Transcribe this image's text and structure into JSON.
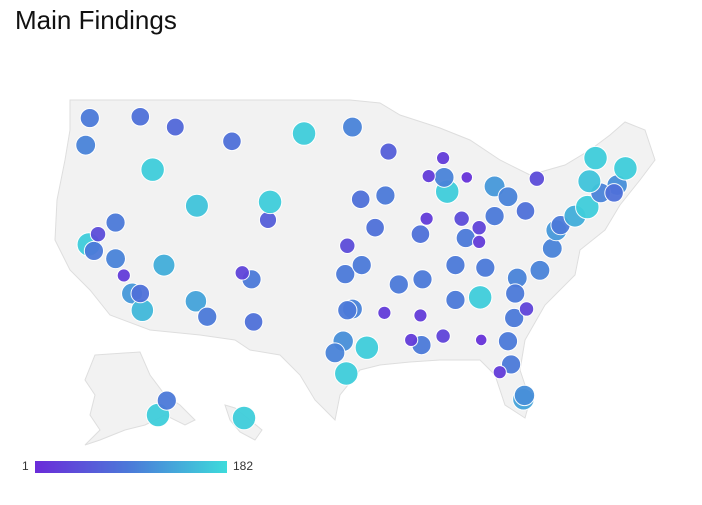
{
  "chart_data": {
    "type": "bubble-map",
    "title": "Main Findings",
    "scale": {
      "min": 1,
      "max": 182,
      "colors": [
        "#6a2bd9",
        "#4b7bd9",
        "#3ddbdb"
      ]
    },
    "points": [
      {
        "lon": -122.3,
        "lat": 47.6,
        "value": 90
      },
      {
        "lon": -122.7,
        "lat": 45.5,
        "value": 100
      },
      {
        "lon": -117.4,
        "lat": 47.7,
        "value": 80
      },
      {
        "lon": -116.2,
        "lat": 43.6,
        "value": 170
      },
      {
        "lon": -114.0,
        "lat": 46.9,
        "value": 70
      },
      {
        "lon": -108.5,
        "lat": 45.8,
        "value": 80
      },
      {
        "lon": -101.5,
        "lat": 46.4,
        "value": 170
      },
      {
        "lon": -96.8,
        "lat": 46.9,
        "value": 100
      },
      {
        "lon": -93.3,
        "lat": 45.0,
        "value": 60
      },
      {
        "lon": -111.9,
        "lat": 40.8,
        "value": 160
      },
      {
        "lon": -105.0,
        "lat": 39.7,
        "value": 60
      },
      {
        "lon": -104.8,
        "lat": 41.1,
        "value": 170
      },
      {
        "lon": -122.4,
        "lat": 37.8,
        "value": 170
      },
      {
        "lon": -121.9,
        "lat": 37.3,
        "value": 90
      },
      {
        "lon": -121.5,
        "lat": 38.6,
        "value": 40
      },
      {
        "lon": -118.2,
        "lat": 34.0,
        "value": 120
      },
      {
        "lon": -117.2,
        "lat": 32.7,
        "value": 150
      },
      {
        "lon": -117.4,
        "lat": 34.0,
        "value": 80
      },
      {
        "lon": -115.1,
        "lat": 36.2,
        "value": 140
      },
      {
        "lon": -112.0,
        "lat": 33.4,
        "value": 130
      },
      {
        "lon": -110.9,
        "lat": 32.2,
        "value": 90
      },
      {
        "lon": -106.6,
        "lat": 35.1,
        "value": 90
      },
      {
        "lon": -107.5,
        "lat": 35.6,
        "value": 30
      },
      {
        "lon": -106.4,
        "lat": 31.8,
        "value": 80
      },
      {
        "lon": -96.8,
        "lat": 32.8,
        "value": 100
      },
      {
        "lon": -97.3,
        "lat": 32.7,
        "value": 90
      },
      {
        "lon": -97.7,
        "lat": 30.3,
        "value": 110
      },
      {
        "lon": -98.5,
        "lat": 29.4,
        "value": 100
      },
      {
        "lon": -95.4,
        "lat": 29.8,
        "value": 170
      },
      {
        "lon": -97.4,
        "lat": 27.8,
        "value": 170
      },
      {
        "lon": -97.5,
        "lat": 35.5,
        "value": 90
      },
      {
        "lon": -95.9,
        "lat": 36.2,
        "value": 90
      },
      {
        "lon": -97.3,
        "lat": 37.7,
        "value": 40
      },
      {
        "lon": -94.6,
        "lat": 39.1,
        "value": 80
      },
      {
        "lon": -96.0,
        "lat": 41.3,
        "value": 80
      },
      {
        "lon": -93.6,
        "lat": 41.6,
        "value": 90
      },
      {
        "lon": -90.2,
        "lat": 38.6,
        "value": 80
      },
      {
        "lon": -87.6,
        "lat": 41.9,
        "value": 170
      },
      {
        "lon": -87.9,
        "lat": 43.0,
        "value": 100
      },
      {
        "lon": -83.0,
        "lat": 42.3,
        "value": 120
      },
      {
        "lon": -81.7,
        "lat": 41.5,
        "value": 100
      },
      {
        "lon": -83.0,
        "lat": 40.0,
        "value": 90
      },
      {
        "lon": -86.2,
        "lat": 39.8,
        "value": 40
      },
      {
        "lon": -84.5,
        "lat": 39.1,
        "value": 30
      },
      {
        "lon": -85.8,
        "lat": 38.3,
        "value": 90
      },
      {
        "lon": -86.8,
        "lat": 36.2,
        "value": 90
      },
      {
        "lon": -90.0,
        "lat": 35.1,
        "value": 90
      },
      {
        "lon": -92.3,
        "lat": 34.7,
        "value": 90
      },
      {
        "lon": -90.1,
        "lat": 30.0,
        "value": 90
      },
      {
        "lon": -90.2,
        "lat": 32.3,
        "value": 20
      },
      {
        "lon": -86.8,
        "lat": 33.5,
        "value": 90
      },
      {
        "lon": -84.4,
        "lat": 33.7,
        "value": 170
      },
      {
        "lon": -80.8,
        "lat": 35.2,
        "value": 100
      },
      {
        "lon": -78.6,
        "lat": 35.8,
        "value": 100
      },
      {
        "lon": -77.4,
        "lat": 37.5,
        "value": 100
      },
      {
        "lon": -77.0,
        "lat": 38.9,
        "value": 120
      },
      {
        "lon": -76.6,
        "lat": 39.3,
        "value": 90
      },
      {
        "lon": -75.2,
        "lat": 40.0,
        "value": 140
      },
      {
        "lon": -74.0,
        "lat": 40.7,
        "value": 170
      },
      {
        "lon": -71.1,
        "lat": 42.4,
        "value": 110
      },
      {
        "lon": -72.7,
        "lat": 41.8,
        "value": 100
      },
      {
        "lon": -71.4,
        "lat": 41.8,
        "value": 80
      },
      {
        "lon": -73.8,
        "lat": 42.7,
        "value": 160
      },
      {
        "lon": -73.2,
        "lat": 44.5,
        "value": 170
      },
      {
        "lon": -70.3,
        "lat": 43.7,
        "value": 170
      },
      {
        "lon": -80.0,
        "lat": 40.4,
        "value": 80
      },
      {
        "lon": -78.9,
        "lat": 42.9,
        "value": 40
      },
      {
        "lon": -81.7,
        "lat": 30.3,
        "value": 90
      },
      {
        "lon": -81.4,
        "lat": 28.5,
        "value": 90
      },
      {
        "lon": -82.5,
        "lat": 27.9,
        "value": 20
      },
      {
        "lon": -80.2,
        "lat": 25.8,
        "value": 130
      },
      {
        "lon": -80.1,
        "lat": 26.1,
        "value": 110
      },
      {
        "lon": -81.1,
        "lat": 32.1,
        "value": 90
      },
      {
        "lon": -79.9,
        "lat": 32.8,
        "value": 30
      },
      {
        "lon": -81.0,
        "lat": 34.0,
        "value": 90
      },
      {
        "lon": -83.9,
        "lat": 36.0,
        "value": 90
      },
      {
        "lon": -84.5,
        "lat": 38.0,
        "value": 20
      },
      {
        "lon": -89.4,
        "lat": 43.1,
        "value": 20
      },
      {
        "lon": -88.0,
        "lat": 44.5,
        "value": 20
      },
      {
        "lon": -85.7,
        "lat": 43.0,
        "value": 10
      },
      {
        "lon": -89.6,
        "lat": 39.8,
        "value": 20
      },
      {
        "lon": -84.3,
        "lat": 30.4,
        "value": 10
      },
      {
        "lon": -88.0,
        "lat": 30.7,
        "value": 30
      },
      {
        "lon": -93.7,
        "lat": 32.5,
        "value": 20
      },
      {
        "lon": -91.1,
        "lat": 30.4,
        "value": 20
      },
      {
        "lon": -119.8,
        "lat": 39.5,
        "value": 90
      },
      {
        "lon": -119.8,
        "lat": 36.7,
        "value": 100
      },
      {
        "lon": -119.0,
        "lat": 35.4,
        "value": 20
      },
      {
        "lon": -149.9,
        "lat": 61.2,
        "value": 170
      },
      {
        "lon": -147.7,
        "lat": 64.8,
        "value": 90
      },
      {
        "lon": -157.9,
        "lat": 21.3,
        "value": 170
      }
    ]
  }
}
